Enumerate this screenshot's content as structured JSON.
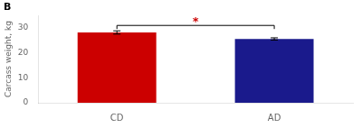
{
  "chart_data": {
    "type": "bar",
    "title": "B",
    "categories": [
      "CD",
      "AD"
    ],
    "values": [
      28.2,
      25.6
    ],
    "errors": [
      0.65,
      0.45
    ],
    "colors": [
      "#CC0000",
      "#1A1A8C"
    ],
    "ylabel": "Carcass weight, kg",
    "ylim": [
      0,
      35
    ],
    "yticks": [
      0,
      10,
      20,
      30
    ],
    "grid": false,
    "annotations": [
      {
        "text": "*",
        "color": "#CC0000"
      }
    ]
  }
}
